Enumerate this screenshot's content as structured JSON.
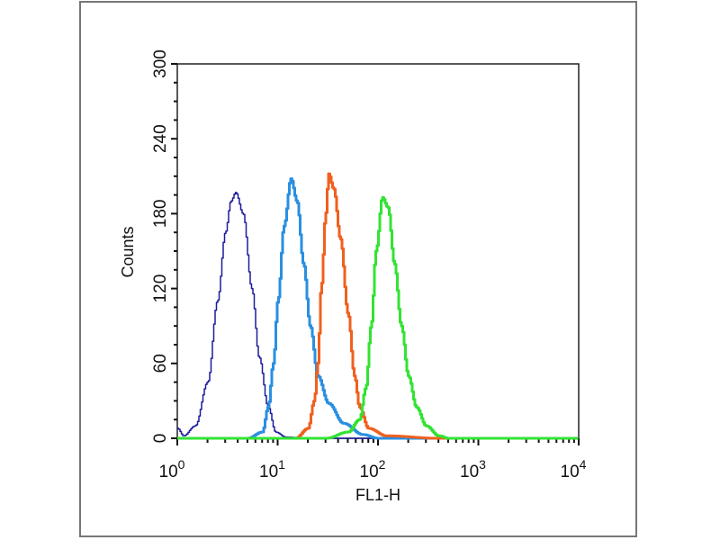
{
  "chart_data": {
    "type": "line",
    "xlabel": "FL1-H",
    "ylabel": "Counts",
    "x_scale": "log",
    "xlim": [
      1,
      10000
    ],
    "ylim": [
      0,
      300
    ],
    "x_ticks": [
      {
        "base": "10",
        "exp": "0",
        "value": 1
      },
      {
        "base": "10",
        "exp": "1",
        "value": 10
      },
      {
        "base": "10",
        "exp": "2",
        "value": 100
      },
      {
        "base": "10",
        "exp": "3",
        "value": 1000
      },
      {
        "base": "10",
        "exp": "4",
        "value": 10000
      }
    ],
    "y_ticks": [
      "0",
      "60",
      "120",
      "180",
      "240",
      "300"
    ],
    "grid": false,
    "legend": "none",
    "series": [
      {
        "color": "#1c1c9a",
        "x": [
          1,
          1.15,
          1.5,
          2,
          2.5,
          3,
          3.4,
          3.8,
          4.5,
          5.5,
          6.5,
          8,
          9.5,
          12,
          20,
          10000
        ],
        "y": [
          8,
          2,
          10,
          45,
          110,
          165,
          190,
          197,
          180,
          120,
          65,
          25,
          5,
          1,
          0,
          0
        ]
      },
      {
        "color": "#2a8fe0",
        "x": [
          1,
          5,
          7,
          8,
          9,
          10,
          11.5,
          13.5,
          15.5,
          18,
          21,
          25,
          32,
          45,
          70,
          100,
          10000
        ],
        "y": [
          0,
          0,
          5,
          25,
          60,
          110,
          170,
          208,
          190,
          140,
          90,
          50,
          28,
          12,
          3,
          0,
          0
        ]
      },
      {
        "color": "#f0601e",
        "x": [
          1,
          15,
          20,
          23,
          25,
          27,
          30,
          32,
          36,
          42,
          50,
          58,
          65,
          80,
          120,
          400,
          10000
        ],
        "y": [
          0,
          0,
          8,
          30,
          60,
          120,
          180,
          212,
          200,
          160,
          100,
          50,
          25,
          8,
          2,
          0,
          0
        ]
      },
      {
        "color": "#33e333",
        "x": [
          1,
          30,
          50,
          65,
          75,
          85,
          95,
          110,
          125,
          145,
          170,
          200,
          240,
          300,
          400,
          500,
          10000
        ],
        "y": [
          0,
          0,
          5,
          15,
          40,
          90,
          150,
          193,
          185,
          140,
          90,
          50,
          25,
          10,
          2,
          0,
          0
        ]
      }
    ]
  }
}
